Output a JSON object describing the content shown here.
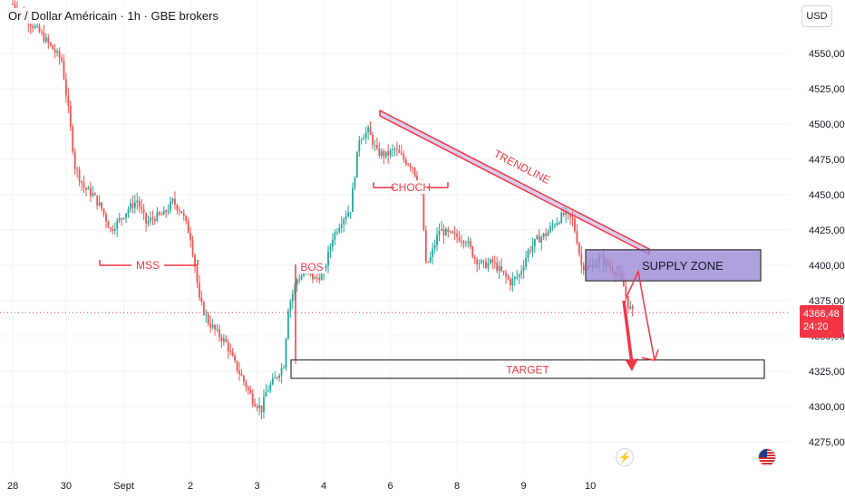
{
  "header": {
    "title": "Or / Dollar Américain · 1h · GBE brokers"
  },
  "toolbar": {
    "currency_label": "USD"
  },
  "price_tag": {
    "price": "4366,48",
    "countdown": "24:20"
  },
  "icons": {
    "flash": "flash-icon",
    "currency_flag": "us-flag-icon"
  },
  "colors": {
    "up": "#26a69a",
    "down": "#ef5350",
    "annotation": "#f23645",
    "supply_fill": "#9c89d6",
    "grid": "#f0f3fa"
  },
  "chart_data": {
    "type": "candlestick",
    "title": "Or / Dollar Américain · 1h · GBE brokers",
    "ylim": [
      4262,
      4570
    ],
    "y_ticks": [
      "4550,00",
      "4525,00",
      "4500,00",
      "4475,00",
      "4450,00",
      "4425,00",
      "4400,00",
      "4375,00",
      "4350,00",
      "4325,00",
      "4300,00",
      "4275,00"
    ],
    "y_tick_values": [
      4550,
      4525,
      4500,
      4475,
      4450,
      4425,
      4400,
      4375,
      4350,
      4325,
      4300,
      4275
    ],
    "x_labels": [
      "28",
      "30",
      "Sept",
      "2",
      "3",
      "4",
      "6",
      "8",
      "9",
      "10"
    ],
    "x_label_bar_index": [
      -22,
      2,
      28,
      58,
      88,
      118,
      148,
      178,
      208,
      238
    ],
    "current_price": 4366.48,
    "path_points": [
      [
        -22,
        4585
      ],
      [
        -10,
        4565
      ],
      [
        0,
        4545
      ],
      [
        3,
        4510
      ],
      [
        6,
        4470
      ],
      [
        10,
        4455
      ],
      [
        14,
        4450
      ],
      [
        18,
        4440
      ],
      [
        22,
        4425
      ],
      [
        26,
        4432
      ],
      [
        30,
        4440
      ],
      [
        34,
        4446
      ],
      [
        38,
        4430
      ],
      [
        42,
        4434
      ],
      [
        46,
        4436
      ],
      [
        50,
        4445
      ],
      [
        54,
        4438
      ],
      [
        58,
        4420
      ],
      [
        60,
        4400
      ],
      [
        62,
        4375
      ],
      [
        66,
        4360
      ],
      [
        70,
        4352
      ],
      [
        74,
        4345
      ],
      [
        78,
        4330
      ],
      [
        82,
        4318
      ],
      [
        86,
        4305
      ],
      [
        90,
        4298
      ],
      [
        92,
        4310
      ],
      [
        94,
        4315
      ],
      [
        97,
        4322
      ],
      [
        100,
        4330
      ],
      [
        102,
        4370
      ],
      [
        106,
        4390
      ],
      [
        110,
        4396
      ],
      [
        114,
        4390
      ],
      [
        118,
        4395
      ],
      [
        122,
        4420
      ],
      [
        126,
        4432
      ],
      [
        130,
        4440
      ],
      [
        132,
        4465
      ],
      [
        134,
        4490
      ],
      [
        138,
        4495
      ],
      [
        142,
        4480
      ],
      [
        146,
        4478
      ],
      [
        150,
        4482
      ],
      [
        154,
        4475
      ],
      [
        158,
        4470
      ],
      [
        162,
        4450
      ],
      [
        164,
        4400
      ],
      [
        166,
        4405
      ],
      [
        170,
        4425
      ],
      [
        174,
        4422
      ],
      [
        178,
        4420
      ],
      [
        182,
        4418
      ],
      [
        186,
        4405
      ],
      [
        190,
        4400
      ],
      [
        194,
        4402
      ],
      [
        198,
        4395
      ],
      [
        202,
        4388
      ],
      [
        206,
        4393
      ],
      [
        210,
        4410
      ],
      [
        214,
        4418
      ],
      [
        218,
        4422
      ],
      [
        222,
        4430
      ],
      [
        226,
        4436
      ],
      [
        230,
        4432
      ],
      [
        232,
        4418
      ],
      [
        234,
        4400
      ],
      [
        238,
        4398
      ],
      [
        242,
        4405
      ],
      [
        246,
        4400
      ],
      [
        250,
        4395
      ],
      [
        253,
        4385
      ],
      [
        255,
        4372
      ],
      [
        257,
        4366.48
      ]
    ],
    "annotations": [
      {
        "label": "MSS",
        "kind": "structure-line",
        "price": 4400
      },
      {
        "label": "BOS",
        "kind": "structure-line",
        "price": 4330
      },
      {
        "label": "CHOCH",
        "kind": "structure-line",
        "price": 4455
      },
      {
        "label": "TRENDLINE",
        "kind": "trendline",
        "from": [
          134,
          4507
        ],
        "to": [
          262,
          4411
        ]
      },
      {
        "label": "SUPPLY ZONE",
        "kind": "zone",
        "price_top": 4411,
        "price_bottom": 4389
      },
      {
        "label": "TARGET",
        "kind": "zone",
        "price_top": 4333,
        "price_bottom": 4320
      }
    ]
  }
}
